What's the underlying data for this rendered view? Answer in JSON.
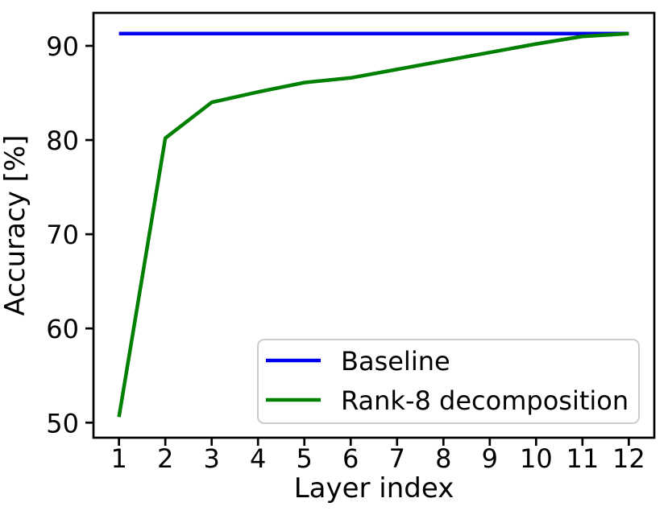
{
  "chart_data": {
    "type": "line",
    "title": "",
    "xlabel": "Layer index",
    "ylabel": "Accuracy [%]",
    "x": [
      1,
      2,
      3,
      4,
      5,
      6,
      7,
      8,
      9,
      10,
      11,
      12
    ],
    "series": [
      {
        "name": "Baseline",
        "color": "#0000ee",
        "values": [
          91.3,
          91.3,
          91.3,
          91.3,
          91.3,
          91.3,
          91.3,
          91.3,
          91.3,
          91.3,
          91.3,
          91.3
        ]
      },
      {
        "name": "Rank-8 decomposition",
        "color": "#008000",
        "values": [
          50.6,
          80.2,
          84.0,
          85.1,
          86.1,
          86.6,
          87.5,
          88.4,
          89.3,
          90.2,
          91.0,
          91.3
        ]
      }
    ],
    "xlim": [
      0.45,
      12.55
    ],
    "ylim": [
      48.4,
      93.5
    ],
    "xticks": [
      1,
      2,
      3,
      4,
      5,
      6,
      7,
      8,
      9,
      10,
      11,
      12
    ],
    "yticks": [
      50,
      60,
      70,
      80,
      90
    ],
    "grid": false,
    "legend_position": "lower center-right",
    "axis_color": "#000000",
    "background_color": "#ffffff",
    "legend_border_color": "#cccccc"
  }
}
